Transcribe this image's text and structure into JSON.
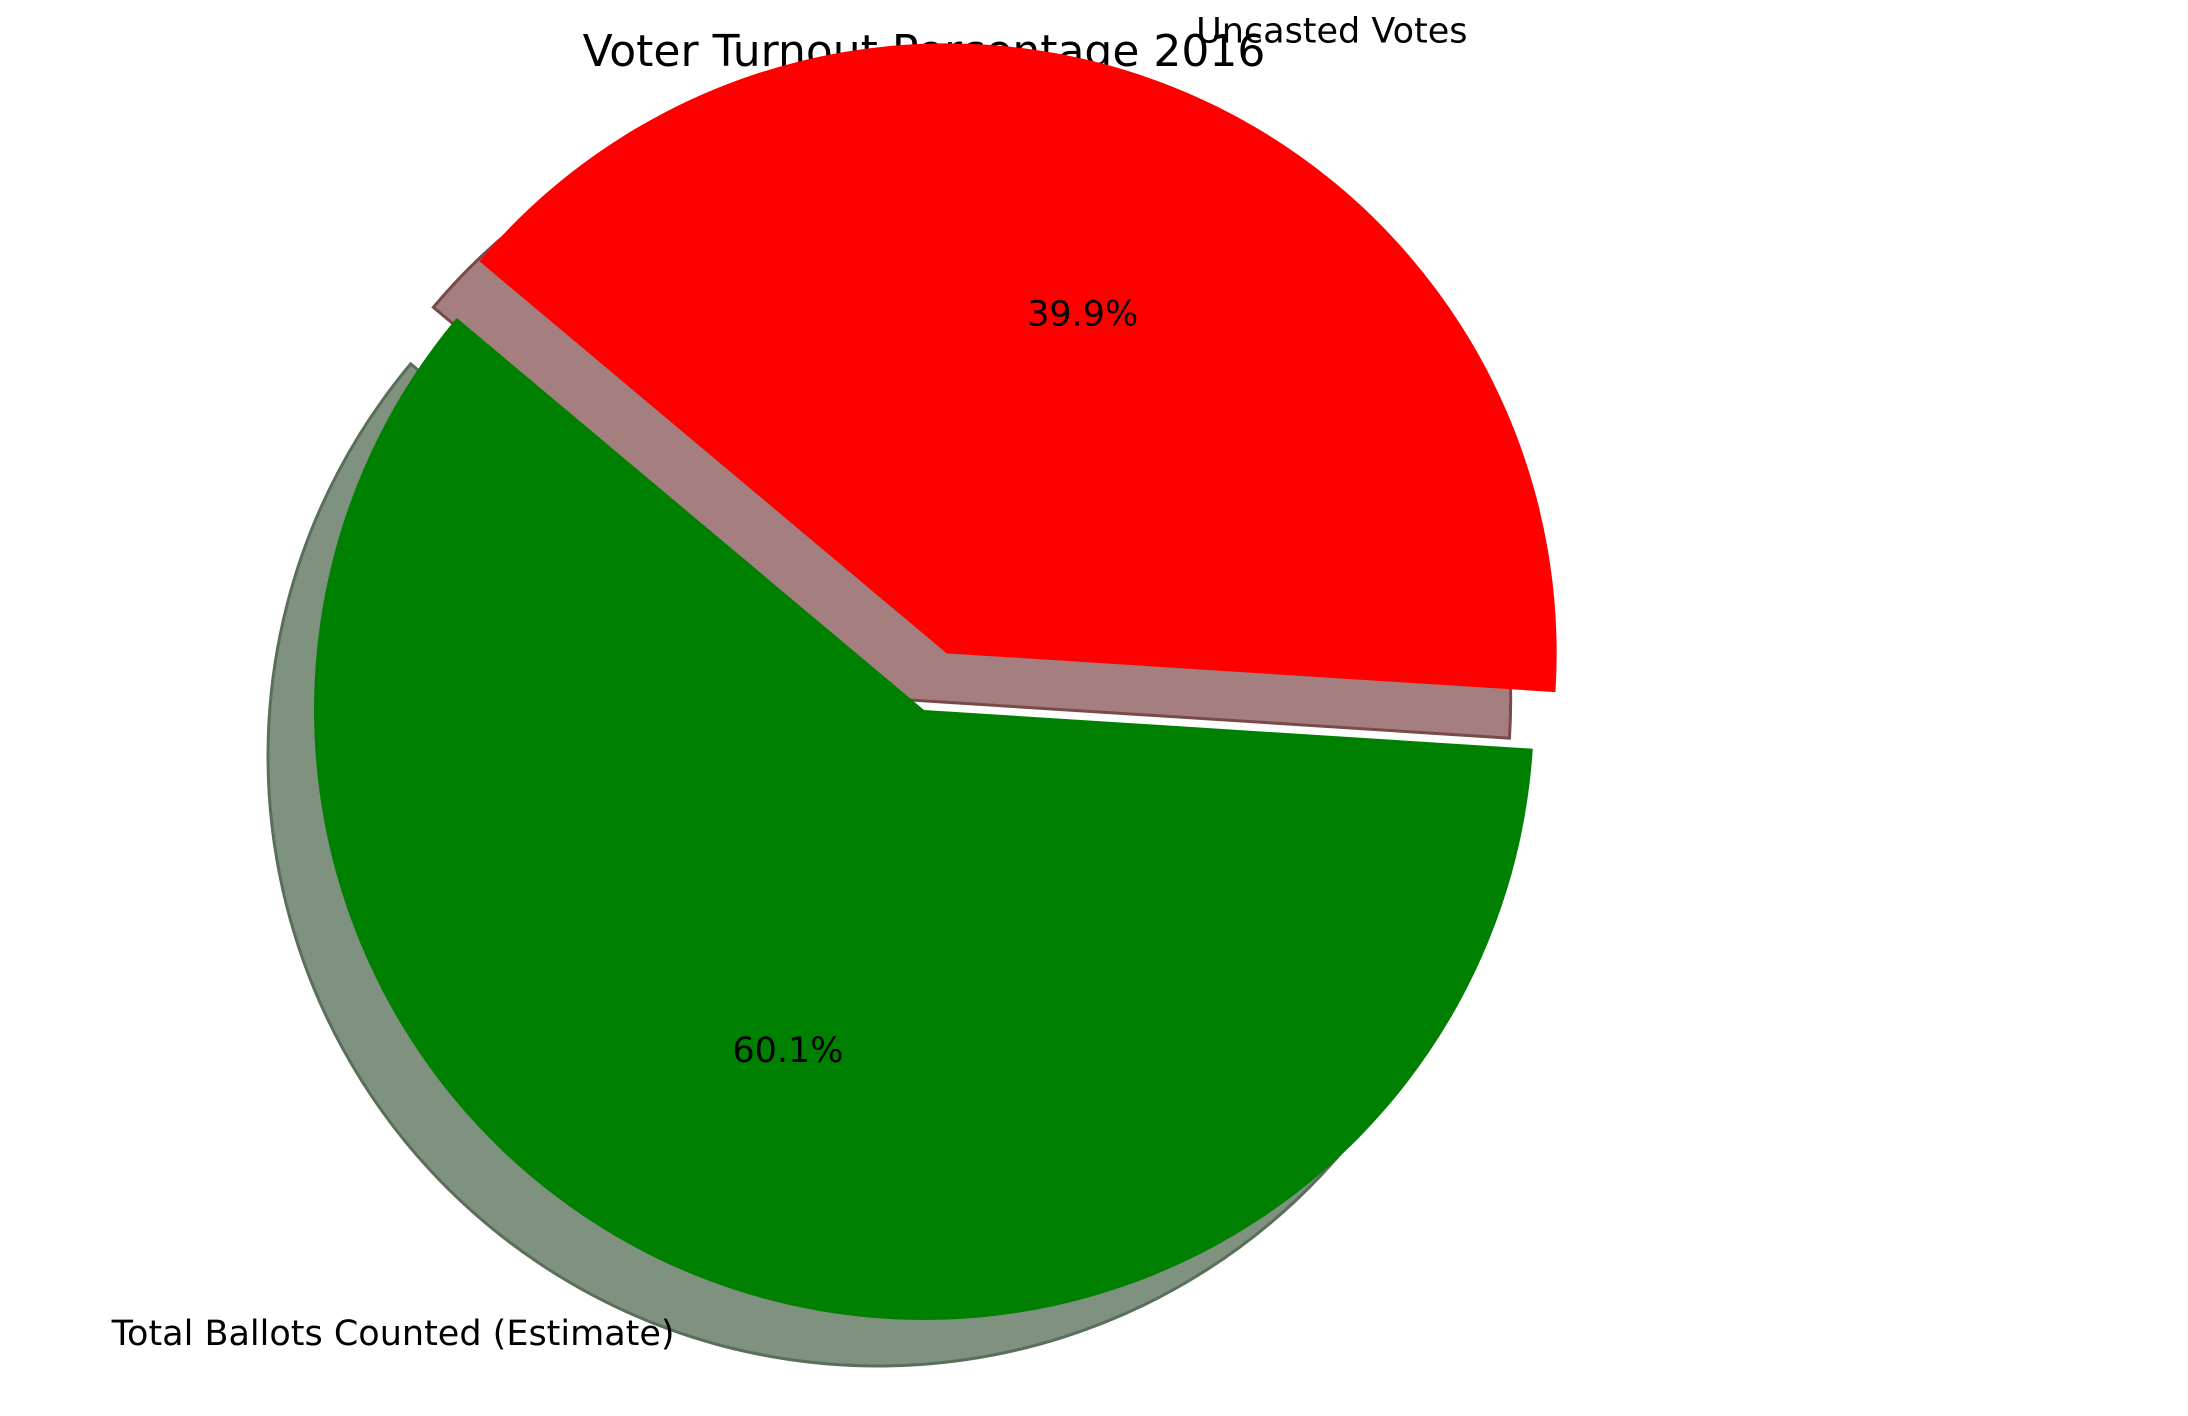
{
  "chart_data": {
    "type": "pie",
    "title": "Voter Turnout Percentage 2016",
    "labels": [
      "Total Ballots Counted (Estimate)",
      "Uncasted Votes"
    ],
    "values": [
      60.1,
      39.9
    ],
    "percent_labels": [
      "60.1%",
      "39.9%"
    ],
    "colors": [
      "#008000",
      "#ff0000"
    ],
    "exploded": [
      false,
      true
    ],
    "shadow": true,
    "start_angle_deg": 140,
    "direction": "counterclockwise"
  }
}
